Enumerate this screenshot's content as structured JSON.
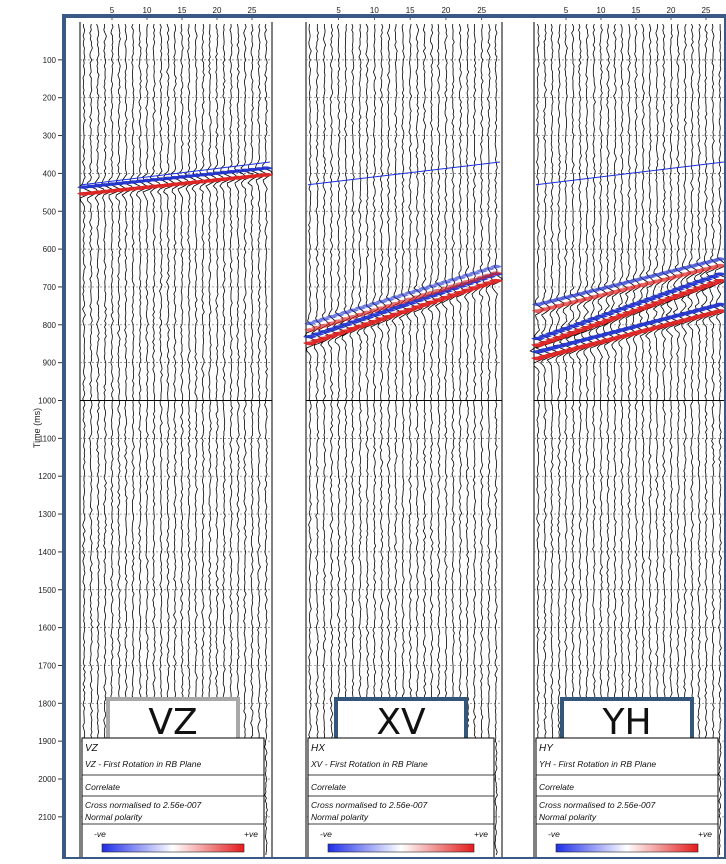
{
  "chart_data": {
    "type": "line",
    "ylabel": "Time (ms)",
    "yticks": [
      100,
      200,
      300,
      400,
      500,
      600,
      700,
      800,
      900,
      1000,
      1100,
      1200,
      1300,
      1400,
      1500,
      1600,
      1700,
      1800,
      1900,
      2000,
      2100
    ],
    "xticks": [
      5,
      10,
      15,
      20,
      25
    ],
    "trace_count": 27,
    "ylim": [
      0,
      2200
    ],
    "first_break": {
      "x": [
        1,
        27
      ],
      "y": [
        430,
        370
      ]
    },
    "colors": {
      "positive": "#dd2222",
      "negative": "#2233cc",
      "first_break": "#1a2ee0",
      "frame": "#3a5a85"
    },
    "panels": [
      {
        "component": "VZ",
        "badge": "VZ",
        "info_title": "VZ",
        "info_subtitle": "VZ - First Rotation in RB Plane",
        "method": "Correlate",
        "normalisation": "Cross normalised to 2.56e-007",
        "polarity": "Normal polarity",
        "scale_neg": "-ve",
        "scale_pos": "+ve",
        "events": [
          {
            "t_start": 450,
            "t_end": 400,
            "amp": 1.0
          }
        ]
      },
      {
        "component": "HX",
        "badge": "XV",
        "info_title": "HX",
        "info_subtitle": "XV - First Rotation in RB Plane",
        "method": "Correlate",
        "normalisation": "Cross normalised to 2.56e-007",
        "polarity": "Normal polarity",
        "scale_neg": "-ve",
        "scale_pos": "+ve",
        "events": [
          {
            "t_start": 845,
            "t_end": 680,
            "amp": 1.0
          },
          {
            "t_start": 810,
            "t_end": 660,
            "amp": 0.6
          }
        ]
      },
      {
        "component": "HY",
        "badge": "YH",
        "info_title": "HY",
        "info_subtitle": "YH - First Rotation in RB Plane",
        "method": "Correlate",
        "normalisation": "Cross normalised to 2.56e-007",
        "polarity": "Normal polarity",
        "scale_neg": "-ve",
        "scale_pos": "+ve",
        "events": [
          {
            "t_start": 850,
            "t_end": 680,
            "amp": 1.0
          },
          {
            "t_start": 885,
            "t_end": 760,
            "amp": 1.0
          },
          {
            "t_start": 760,
            "t_end": 640,
            "amp": 0.7
          }
        ]
      }
    ]
  }
}
